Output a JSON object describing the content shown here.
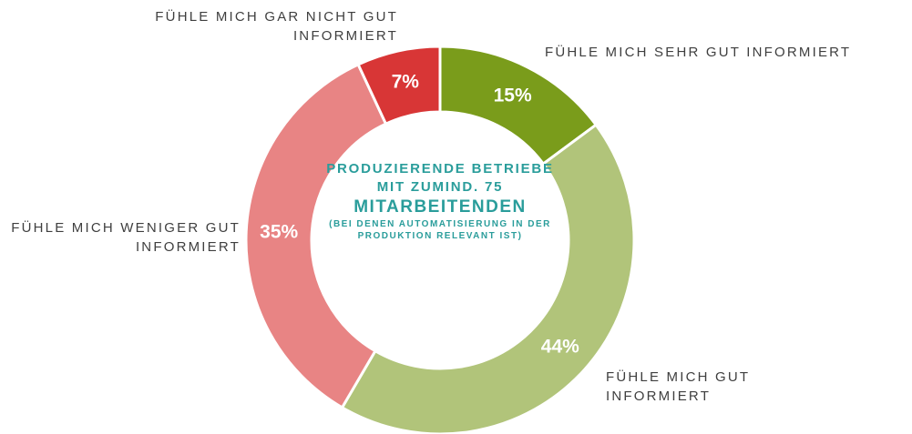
{
  "chart_data": {
    "type": "donut",
    "categories": [
      "FÜHLE MICH SEHR GUT INFORMIERT",
      "FÜHLE MICH GUT INFORMIERT",
      "FÜHLE MICH WENIGER GUT INFORMIERT",
      "FÜHLE MICH GAR NICHT GUT INFORMIERT"
    ],
    "values": [
      15,
      44,
      35,
      7
    ],
    "value_labels": [
      "15%",
      "44%",
      "35%",
      "7%"
    ],
    "colors": [
      "#7a9c1b",
      "#b1c47a",
      "#e88484",
      "#d83636"
    ],
    "center_text": [
      "PRODUZIERENDE BETRIEBE MIT ZUMIND. 75",
      "MITARBEITENDEN",
      "(BEI DENEN AUTOMATISIERUNG IN DER PRODUKTION RELEVANT IST)"
    ]
  }
}
